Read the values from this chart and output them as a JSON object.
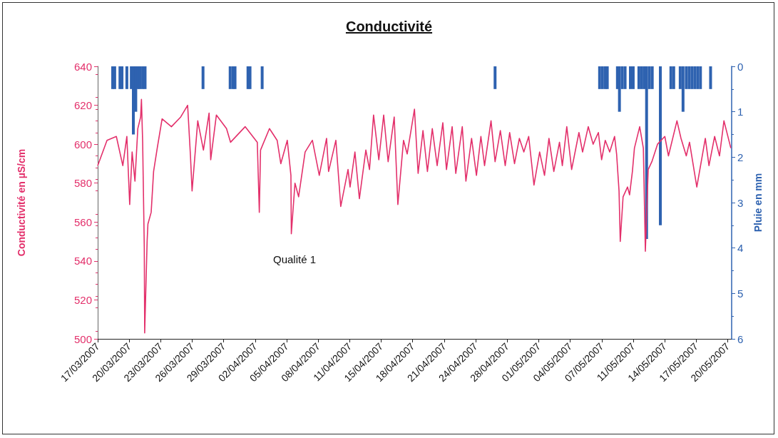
{
  "chart_data": {
    "type": "line",
    "title": "Conductivité",
    "ylabel": "Conductivité en µS/cm",
    "y2label": "Pluie en mm",
    "annotations": [
      "Qualité 1"
    ],
    "xlim": [
      "2007-03-17T00:00",
      "2007-05-21T05:00"
    ],
    "xticks": [
      {
        "value": "2007-03-17T00:00",
        "label": "17/03/2007"
      },
      {
        "value": "2007-03-20T05:46",
        "label": "20/03/2007"
      },
      {
        "value": "2007-03-23T11:31",
        "label": "23/03/2007"
      },
      {
        "value": "2007-03-26T17:17",
        "label": "26/03/2007"
      },
      {
        "value": "2007-03-29T23:02",
        "label": "29/03/2007"
      },
      {
        "value": "2007-04-02T04:48",
        "label": "02/04/2007"
      },
      {
        "value": "2007-04-05T10:34",
        "label": "05/04/2007"
      },
      {
        "value": "2007-04-08T16:19",
        "label": "08/04/2007"
      },
      {
        "value": "2007-04-11T22:05",
        "label": "11/04/2007"
      },
      {
        "value": "2007-04-15T03:50",
        "label": "15/04/2007"
      },
      {
        "value": "2007-04-18T09:36",
        "label": "18/04/2007"
      },
      {
        "value": "2007-04-21T15:22",
        "label": "21/04/2007"
      },
      {
        "value": "2007-04-24T21:07",
        "label": "24/04/2007"
      },
      {
        "value": "2007-04-28T02:53",
        "label": "28/04/2007"
      },
      {
        "value": "2007-05-01T08:38",
        "label": "01/05/2007"
      },
      {
        "value": "2007-05-04T14:24",
        "label": "04/05/2007"
      },
      {
        "value": "2007-05-07T20:10",
        "label": "07/05/2007"
      },
      {
        "value": "2007-05-11T01:55",
        "label": "11/05/2007"
      },
      {
        "value": "2007-05-14T07:41",
        "label": "14/05/2007"
      },
      {
        "value": "2007-05-17T13:26",
        "label": "17/05/2007"
      },
      {
        "value": "2007-05-20T19:12",
        "label": "20/05/2007"
      }
    ],
    "ylim": [
      500,
      640
    ],
    "yticks": [
      500,
      520,
      540,
      560,
      580,
      600,
      620,
      640
    ],
    "y2lim": [
      6,
      0
    ],
    "y2ticks": [
      0,
      1,
      2,
      3,
      4,
      5,
      6
    ],
    "grid": false,
    "marker": "none",
    "line_style": "solid",
    "series": [
      {
        "color": "#e3306b",
        "x": [
          "2007-03-17T00:00",
          "2007-03-17T23:00",
          "2007-03-18T22:00",
          "2007-03-19T14:00",
          "2007-03-20T00:00",
          "2007-03-20T07:00",
          "2007-03-20T13:00",
          "2007-03-20T20:00",
          "2007-03-21T03:00",
          "2007-03-21T10:00",
          "2007-03-21T12:00",
          "2007-03-21T15:00",
          "2007-03-21T19:00",
          "2007-03-21T20:00",
          "2007-03-22T02:00",
          "2007-03-22T04:00",
          "2007-03-22T12:00",
          "2007-03-22T18:00",
          "2007-03-23T03:00",
          "2007-03-23T15:00",
          "2007-03-24T14:00",
          "2007-03-25T13:00",
          "2007-03-26T06:00",
          "2007-03-26T13:00",
          "2007-03-26T17:00",
          "2007-03-27T07:00",
          "2007-03-27T21:00",
          "2007-03-28T11:00",
          "2007-03-28T15:00",
          "2007-03-29T05:00",
          "2007-03-30T06:00",
          "2007-03-30T16:00",
          "2007-04-01T04:00",
          "2007-04-02T10:00",
          "2007-04-02T15:00",
          "2007-04-02T18:00",
          "2007-04-03T16:00",
          "2007-04-04T11:00",
          "2007-04-04T20:00",
          "2007-04-05T12:00",
          "2007-04-05T21:00",
          "2007-04-05T22:00",
          "2007-04-06T07:00",
          "2007-04-06T16:00",
          "2007-04-07T08:00",
          "2007-04-08T02:00",
          "2007-04-08T19:00",
          "2007-04-09T13:00",
          "2007-04-09T18:00",
          "2007-04-10T12:00",
          "2007-04-11T00:00",
          "2007-04-11T18:00",
          "2007-04-11T23:00",
          "2007-04-12T11:00",
          "2007-04-12T22:00",
          "2007-04-13T14:00",
          "2007-04-13T23:00",
          "2007-04-14T09:00",
          "2007-04-14T22:00",
          "2007-04-15T10:00",
          "2007-04-15T21:00",
          "2007-04-16T12:00",
          "2007-04-16T21:00",
          "2007-04-17T11:00",
          "2007-04-17T20:00",
          "2007-04-18T14:00",
          "2007-04-18T23:00",
          "2007-04-19T11:00",
          "2007-04-19T22:00",
          "2007-04-20T10:00",
          "2007-04-20T22:00",
          "2007-04-21T12:00",
          "2007-04-21T21:00",
          "2007-04-22T11:00",
          "2007-04-22T20:00",
          "2007-04-23T12:00",
          "2007-04-23T21:00",
          "2007-04-24T11:00",
          "2007-04-24T23:00",
          "2007-04-25T10:00",
          "2007-04-25T19:00",
          "2007-04-26T11:00",
          "2007-04-26T21:00",
          "2007-04-27T10:00",
          "2007-04-27T22:00",
          "2007-04-28T09:00",
          "2007-04-28T21:00",
          "2007-04-29T09:00",
          "2007-04-29T20:00",
          "2007-04-30T08:00",
          "2007-04-30T21:00",
          "2007-05-01T11:00",
          "2007-05-01T23:00",
          "2007-05-02T10:00",
          "2007-05-02T22:00",
          "2007-05-03T12:00",
          "2007-05-03T19:00",
          "2007-05-04T06:00",
          "2007-05-04T18:00",
          "2007-05-05T12:00",
          "2007-05-05T21:00",
          "2007-05-06T11:00",
          "2007-05-06T23:00",
          "2007-05-07T12:00",
          "2007-05-07T20:00",
          "2007-05-08T05:00",
          "2007-05-08T16:00",
          "2007-05-09T04:00",
          "2007-05-09T09:00",
          "2007-05-09T15:00",
          "2007-05-09T18:00",
          "2007-05-10T01:00",
          "2007-05-10T12:00",
          "2007-05-10T17:00",
          "2007-05-11T00:00",
          "2007-05-11T05:00",
          "2007-05-11T18:00",
          "2007-05-12T03:00",
          "2007-05-12T08:00",
          "2007-05-12T15:00",
          "2007-05-13T00:00",
          "2007-05-13T14:00",
          "2007-05-14T08:00",
          "2007-05-14T17:00",
          "2007-05-15T14:00",
          "2007-05-16T00:00",
          "2007-05-16T13:00",
          "2007-05-16T21:00",
          "2007-05-17T15:00",
          "2007-05-18T12:00",
          "2007-05-18T21:00",
          "2007-05-19T11:00",
          "2007-05-19T23:00",
          "2007-05-20T10:00",
          "2007-05-21T03:00"
        ],
        "values": [
          589,
          602,
          604,
          589,
          604,
          569,
          596,
          581,
          608,
          614,
          623,
          601,
          547,
          503,
          550,
          559,
          565,
          586,
          598,
          613,
          609,
          614,
          620,
          594,
          576,
          612,
          597,
          616,
          592,
          615,
          608,
          601,
          609,
          601,
          565,
          597,
          608,
          602,
          590,
          602,
          584,
          554,
          580,
          573,
          596,
          602,
          584,
          603,
          586,
          602,
          568,
          587,
          578,
          596,
          572,
          597,
          587,
          615,
          592,
          615,
          591,
          614,
          569,
          602,
          595,
          618,
          585,
          607,
          586,
          608,
          589,
          611,
          587,
          609,
          585,
          609,
          581,
          603,
          584,
          604,
          589,
          612,
          591,
          607,
          589,
          606,
          590,
          603,
          596,
          604,
          579,
          596,
          584,
          603,
          586,
          601,
          589,
          609,
          587,
          606,
          596,
          609,
          600,
          606,
          592,
          602,
          596,
          604,
          595,
          576,
          550,
          573,
          578,
          574,
          586,
          598,
          609,
          598,
          545,
          587,
          591,
          600,
          604,
          594,
          612,
          603,
          594,
          601,
          578,
          603,
          589,
          604,
          594,
          612,
          598
        ]
      },
      {
        "type": "bar",
        "axis": "y2",
        "color": "#2e62b0",
        "x": [
          "2007-03-18T13:00",
          "2007-03-18T18:00",
          "2007-03-19T07:00",
          "2007-03-19T12:00",
          "2007-03-20T00:00",
          "2007-03-20T11:00",
          "2007-03-20T16:00",
          "2007-03-20T22:00",
          "2007-03-21T03:00",
          "2007-03-21T08:00",
          "2007-03-21T15:00",
          "2007-03-21T21:00",
          "2007-03-27T20:00",
          "2007-03-30T15:00",
          "2007-03-30T22:00",
          "2007-03-31T03:00",
          "2007-04-01T11:00",
          "2007-04-01T16:00",
          "2007-04-02T22:00",
          "2007-04-26T21:00",
          "2007-05-07T15:00",
          "2007-05-07T22:00",
          "2007-05-08T05:00",
          "2007-05-08T10:00",
          "2007-05-09T11:00",
          "2007-05-09T16:00",
          "2007-05-09T23:00",
          "2007-05-10T06:00",
          "2007-05-10T19:00",
          "2007-05-11T02:00",
          "2007-05-11T16:00",
          "2007-05-11T23:00",
          "2007-05-12T06:00",
          "2007-05-12T11:00",
          "2007-05-12T18:00",
          "2007-05-13T01:00",
          "2007-05-13T21:00",
          "2007-05-14T23:00",
          "2007-05-15T06:00",
          "2007-05-15T22:00",
          "2007-05-16T05:00",
          "2007-05-16T13:00",
          "2007-05-16T20:00",
          "2007-05-17T03:00",
          "2007-05-17T10:00",
          "2007-05-17T17:00",
          "2007-05-18T00:00",
          "2007-05-19T01:00"
        ],
        "values": [
          0.5,
          0.5,
          0.5,
          0.5,
          0.5,
          0.5,
          1.5,
          1.0,
          0.5,
          0.5,
          0.5,
          0.5,
          0.5,
          0.5,
          0.5,
          0.5,
          0.5,
          0.5,
          0.5,
          0.5,
          0.5,
          0.5,
          0.5,
          0.5,
          0.5,
          1.0,
          0.5,
          0.5,
          0.5,
          0.5,
          0.5,
          0.5,
          0.5,
          3.8,
          0.5,
          0.5,
          3.5,
          0.5,
          0.5,
          0.5,
          1.0,
          0.5,
          0.5,
          0.5,
          0.5,
          0.5,
          0.5,
          0.5
        ]
      }
    ]
  }
}
